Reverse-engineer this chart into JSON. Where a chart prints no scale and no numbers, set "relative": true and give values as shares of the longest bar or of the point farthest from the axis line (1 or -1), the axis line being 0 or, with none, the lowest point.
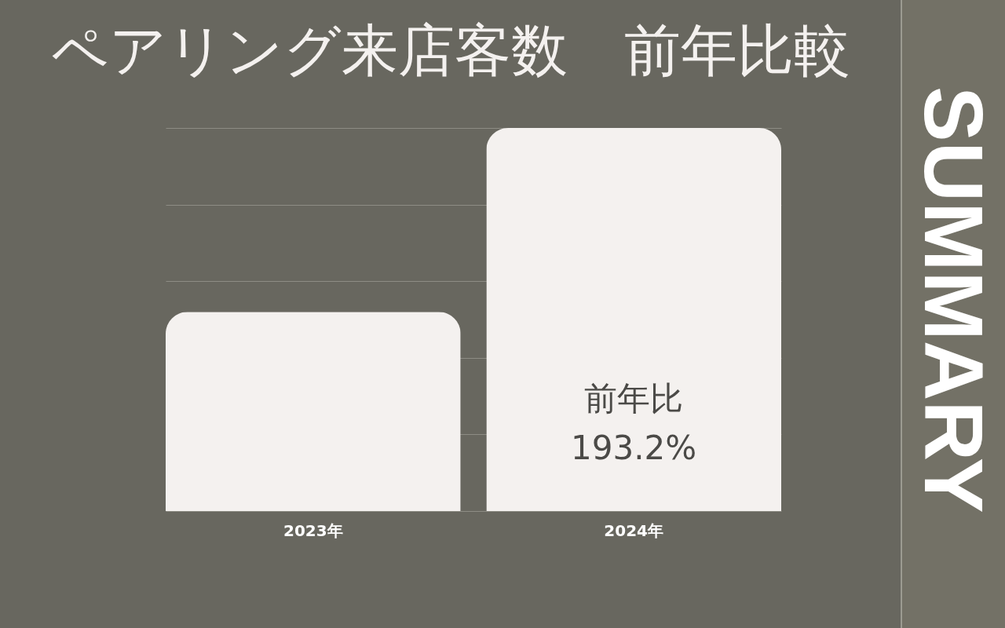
{
  "chart_data": {
    "type": "bar",
    "title": "ペアリング来店客数　前年比較",
    "categories": [
      "2023年",
      "2024年"
    ],
    "values": [
      0.52,
      1
    ],
    "color": "#f4f1ef",
    "relative": true,
    "grid": "y",
    "annotations": [
      "前年比\n193.2%",
      "SUMMARY"
    ]
  }
}
